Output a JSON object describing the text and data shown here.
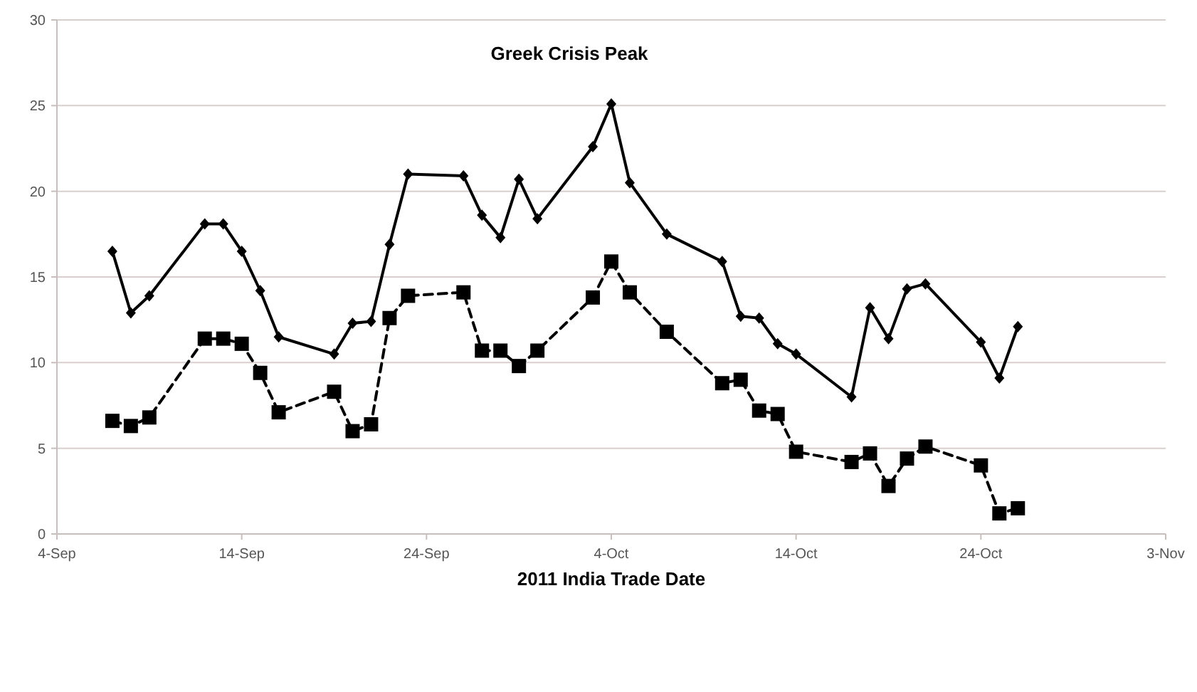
{
  "chart_data": {
    "type": "line",
    "title": "Greek Crisis Peak",
    "xlabel": "2011 India Trade Date",
    "x": [
      "2011-09-07",
      "2011-09-08",
      "2011-09-09",
      "2011-09-12",
      "2011-09-13",
      "2011-09-14",
      "2011-09-15",
      "2011-09-16",
      "2011-09-19",
      "2011-09-20",
      "2011-09-21",
      "2011-09-22",
      "2011-09-23",
      "2011-09-26",
      "2011-09-27",
      "2011-09-28",
      "2011-09-29",
      "2011-09-30",
      "2011-10-03",
      "2011-10-04",
      "2011-10-05",
      "2011-10-07",
      "2011-10-10",
      "2011-10-11",
      "2011-10-12",
      "2011-10-13",
      "2011-10-14",
      "2011-10-17",
      "2011-10-18",
      "2011-10-19",
      "2011-10-20",
      "2011-10-21",
      "2011-10-24",
      "2011-10-25",
      "2011-10-26"
    ],
    "series": [
      {
        "color": "#000000",
        "marker": "diamond",
        "line_style": "solid",
        "values": [
          16.5,
          12.9,
          13.9,
          18.1,
          18.1,
          16.5,
          14.2,
          11.5,
          10.5,
          12.3,
          12.4,
          16.9,
          21.0,
          20.9,
          18.6,
          17.3,
          20.7,
          18.4,
          22.6,
          25.1,
          20.5,
          17.5,
          15.9,
          12.7,
          12.6,
          11.1,
          10.5,
          8.0,
          13.2,
          11.4,
          14.3,
          14.6,
          11.2,
          9.1,
          12.1
        ]
      },
      {
        "color": "#000000",
        "marker": "square",
        "line_style": "dashed",
        "values": [
          6.6,
          6.3,
          6.8,
          11.4,
          11.4,
          11.1,
          9.4,
          7.1,
          8.3,
          6.0,
          6.4,
          12.6,
          13.9,
          14.1,
          10.7,
          10.7,
          9.8,
          10.7,
          13.8,
          15.9,
          14.1,
          11.8,
          8.8,
          9.0,
          7.2,
          7.0,
          4.8,
          4.2,
          4.7,
          2.8,
          4.4,
          5.1,
          4.0,
          1.2,
          1.5
        ]
      }
    ],
    "xlim": [
      "2011-09-04",
      "2011-11-03"
    ],
    "xticks": [
      {
        "value": "2011-09-04",
        "label": "4-Sep"
      },
      {
        "value": "2011-09-14",
        "label": "14-Sep"
      },
      {
        "value": "2011-09-24",
        "label": "24-Sep"
      },
      {
        "value": "2011-10-04",
        "label": "4-Oct"
      },
      {
        "value": "2011-10-14",
        "label": "14-Oct"
      },
      {
        "value": "2011-10-24",
        "label": "24-Oct"
      },
      {
        "value": "2011-11-03",
        "label": "3-Nov"
      }
    ],
    "ylim": [
      0,
      30
    ],
    "yticks": [
      0,
      5,
      10,
      15,
      20,
      25,
      30
    ],
    "grid": "y"
  }
}
